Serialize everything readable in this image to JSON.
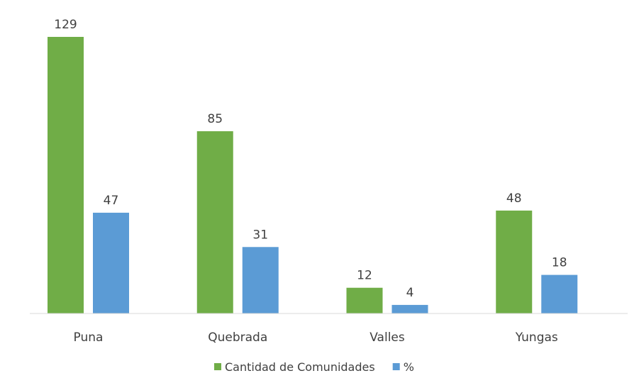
{
  "chart_data": {
    "type": "bar",
    "categories": [
      "Puna",
      "Quebrada",
      "Valles",
      "Yungas"
    ],
    "series": [
      {
        "name": "Cantidad de Comunidades",
        "values": [
          129,
          85,
          12,
          48
        ],
        "color": "#70ad47"
      },
      {
        "name": "%",
        "values": [
          47,
          31,
          4,
          18
        ],
        "color": "#5b9bd5"
      }
    ],
    "ylim": [
      0,
      129
    ],
    "grid": false,
    "legend": "bottom-center",
    "axis_color": "#d9d9d9",
    "text_color": "#404040"
  }
}
